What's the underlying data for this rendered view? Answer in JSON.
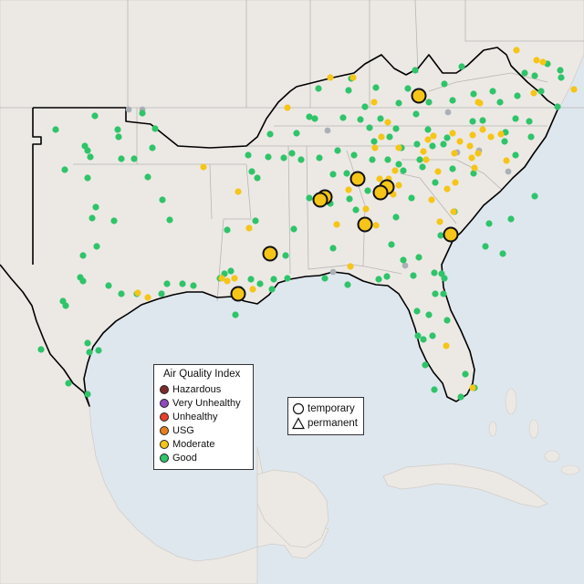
{
  "legend": {
    "title": "Air Quality Index",
    "categories": [
      {
        "label": "Hazardous",
        "color": "#7e2a2a"
      },
      {
        "label": "Very Unhealthy",
        "color": "#8f4ac0"
      },
      {
        "label": "Unhealthy",
        "color": "#e8412a"
      },
      {
        "label": "USG",
        "color": "#e6801e"
      },
      {
        "label": "Moderate",
        "color": "#f5c518"
      },
      {
        "label": "Good",
        "color": "#2fc46a"
      }
    ],
    "no_data_color": "#aab0b5"
  },
  "type_legend": {
    "temporary": "temporary",
    "permanent": "permanent"
  },
  "colors": {
    "water": "#dfe7ee",
    "land": "#ece9e5",
    "region_outline": "#000000",
    "state_border": "#b8b6b2"
  }
}
